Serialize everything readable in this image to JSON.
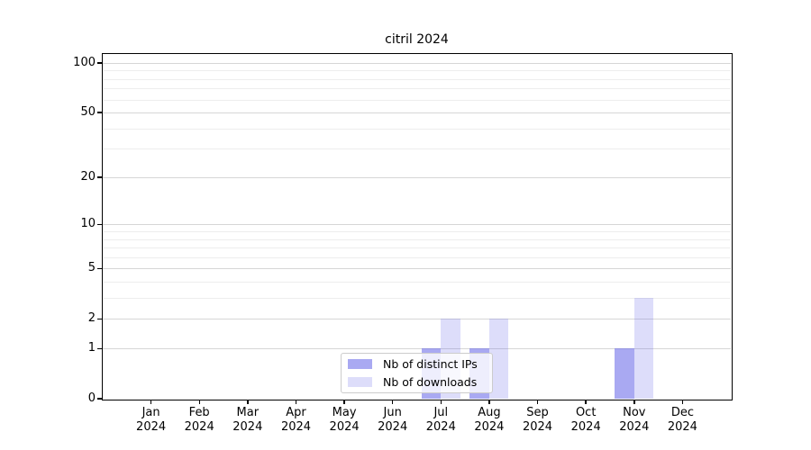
{
  "chart_data": {
    "type": "bar",
    "title": "citril 2024",
    "x_months": [
      "Jan",
      "Feb",
      "Mar",
      "Apr",
      "May",
      "Jun",
      "Jul",
      "Aug",
      "Sep",
      "Oct",
      "Nov",
      "Dec"
    ],
    "x_year": "2024",
    "series": [
      {
        "name": "Nb of distinct IPs",
        "color": "rgba(99,99,231,0.55)",
        "values": [
          0,
          0,
          0,
          0,
          0,
          0,
          1,
          1,
          0,
          0,
          1,
          0
        ]
      },
      {
        "name": "Nb of downloads",
        "color": "rgba(99,99,231,0.22)",
        "values": [
          0,
          0,
          0,
          0,
          0,
          0,
          2,
          2,
          0,
          0,
          3,
          0
        ]
      }
    ],
    "y_scale": "log1p",
    "ylim": [
      0,
      113
    ],
    "y_major_ticks": [
      0,
      1,
      2,
      5,
      10,
      20,
      50,
      100
    ],
    "y_minor_gridlines": [
      3,
      4,
      6,
      7,
      8,
      9,
      30,
      40,
      60,
      70,
      80,
      90
    ],
    "grid": "on",
    "legend_position": "lower center",
    "colors": {
      "major_grid": "#d6d6d6",
      "minor_grid": "#ededed",
      "spine": "#000000",
      "background": "#ffffff"
    }
  }
}
